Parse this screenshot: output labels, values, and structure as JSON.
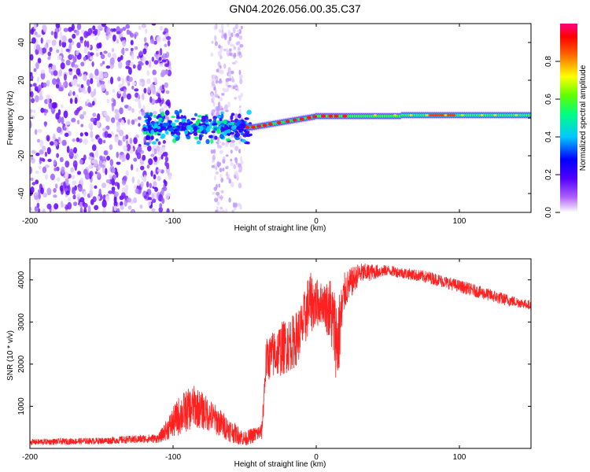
{
  "title": "GN04.2026.056.00.35.C37",
  "chart_data": [
    {
      "type": "heatmap",
      "xlabel": "Height of straight line (km)",
      "ylabel": "Frequency (Hz)",
      "xlim": [
        -200,
        150
      ],
      "ylim": [
        -50,
        50
      ],
      "xticks": [
        -200,
        -100,
        0,
        100
      ],
      "yticks": [
        -40,
        -20,
        0,
        20,
        40
      ],
      "colorbar": {
        "label": "Normalized spectral amplitude",
        "range": [
          0,
          1
        ],
        "ticks": [
          "0.0",
          "0.2",
          "0.4",
          "0.6",
          "0.8"
        ],
        "colormap": [
          "#ffffff",
          "#7a00ff",
          "#0000ff",
          "#00ffff",
          "#00ff00",
          "#ffff00",
          "#ff0000",
          "#ff0080"
        ]
      },
      "features": {
        "noise_region_x": [
          -200,
          -110
        ],
        "noise_band_x": [
          -73,
          -52
        ],
        "signal_trace_x": [
          -120,
          150
        ],
        "signal_frequency_y": [
          -6,
          2
        ],
        "peak_x": [
          -25,
          0,
          90
        ]
      }
    },
    {
      "type": "line",
      "xlabel": "Height of straight line (km)",
      "ylabel": "SNR (10 * v/v)",
      "xlim": [
        -200,
        150
      ],
      "ylim": [
        0,
        4500
      ],
      "xticks": [
        -200,
        -100,
        0,
        100
      ],
      "yticks": [
        1000,
        2000,
        3000,
        4000
      ],
      "color": "#ff2020",
      "envelope_x": [
        -200,
        -150,
        -110,
        -95,
        -85,
        -75,
        -60,
        -50,
        -38,
        -35,
        -25,
        -15,
        -10,
        -5,
        5,
        10,
        15,
        20,
        30,
        50,
        80,
        110,
        130,
        150
      ],
      "envelope_lo": [
        80,
        100,
        130,
        300,
        500,
        400,
        150,
        50,
        200,
        1600,
        1700,
        1900,
        2200,
        2700,
        3000,
        2400,
        1400,
        3300,
        3900,
        4100,
        3900,
        3600,
        3400,
        3300
      ],
      "envelope_hi": [
        220,
        260,
        350,
        1300,
        1500,
        1200,
        700,
        400,
        600,
        2600,
        3000,
        3200,
        3500,
        4200,
        3900,
        4100,
        3600,
        4200,
        4400,
        4350,
        4200,
        3900,
        3700,
        3500
      ]
    }
  ]
}
